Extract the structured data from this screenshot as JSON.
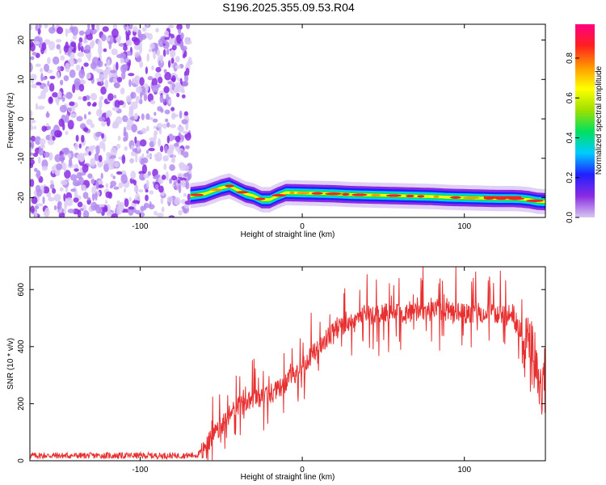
{
  "title": "S196.2025.355.09.53.R04",
  "chart_data": [
    {
      "type": "heatmap",
      "xlabel": "Height of straight line (km)",
      "ylabel": "Frequency (Hz)",
      "xlim": [
        -168,
        150
      ],
      "ylim": [
        -25,
        24
      ],
      "xticks": [
        "-100",
        "0",
        "100"
      ],
      "xtick_values": [
        -100,
        0,
        100
      ],
      "yticks": [
        "-20",
        "-10",
        "0",
        "10",
        "20"
      ],
      "ytick_values": [
        -20,
        -10,
        0,
        10,
        20
      ],
      "grid": false,
      "noise_region_x": [
        -168,
        -69
      ],
      "ridge": {
        "x": [
          -69,
          -60,
          -50,
          -45,
          -40,
          -35,
          -30,
          -25,
          -20,
          -15,
          -10,
          0,
          10,
          20,
          30,
          40,
          50,
          60,
          70,
          80,
          90,
          100,
          110,
          120,
          130,
          135,
          140,
          145,
          150
        ],
        "frequency": [
          -19.5,
          -19.0,
          -17.5,
          -17.0,
          -18.0,
          -19.0,
          -19.5,
          -20.5,
          -20.5,
          -19.5,
          -18.7,
          -18.8,
          -18.9,
          -19.0,
          -19.2,
          -19.3,
          -19.4,
          -19.5,
          -19.6,
          -19.7,
          -19.9,
          -20.0,
          -20.1,
          -20.2,
          -20.2,
          -20.3,
          -20.5,
          -20.9,
          -21.0
        ]
      }
    },
    {
      "type": "line",
      "xlabel": "Height of straight line (km)",
      "ylabel": "SNR (10 * v/v)",
      "xlim": [
        -168,
        150
      ],
      "ylim": [
        0,
        680
      ],
      "xticks": [
        "-100",
        "0",
        "100"
      ],
      "xtick_values": [
        -100,
        0,
        100
      ],
      "yticks": [
        "0",
        "200",
        "400",
        "600"
      ],
      "ytick_values": [
        0,
        200,
        400,
        600
      ],
      "grid": false,
      "series": [
        {
          "color": "#e83030",
          "x": [
            -168,
            -150,
            -130,
            -110,
            -90,
            -75,
            -65,
            -60,
            -55,
            -50,
            -45,
            -40,
            -35,
            -30,
            -25,
            -20,
            -15,
            -10,
            -5,
            0,
            5,
            10,
            15,
            20,
            25,
            30,
            35,
            40,
            50,
            60,
            70,
            80,
            90,
            100,
            110,
            120,
            125,
            130,
            135,
            140,
            145,
            150
          ],
          "values": [
            18,
            18,
            18,
            18,
            18,
            18,
            20,
            40,
            95,
            120,
            160,
            190,
            200,
            215,
            225,
            230,
            250,
            275,
            300,
            330,
            365,
            400,
            430,
            455,
            475,
            490,
            505,
            515,
            520,
            515,
            520,
            525,
            525,
            515,
            520,
            515,
            510,
            490,
            450,
            380,
            310,
            260
          ]
        }
      ]
    }
  ],
  "colorbar": {
    "label": "Normalized spectral amplitude",
    "ticks": [
      "0.0",
      "0.2",
      "0.4",
      "0.6",
      "0.8"
    ],
    "tick_values": [
      0.0,
      0.2,
      0.4,
      0.6,
      0.8
    ],
    "range": [
      0,
      0.97
    ],
    "colors": [
      "#d8c8f0",
      "#8a2be2",
      "#2020ff",
      "#00ccff",
      "#00e060",
      "#a0e000",
      "#ffff00",
      "#ff9900",
      "#ff2020",
      "#ff0080"
    ]
  }
}
